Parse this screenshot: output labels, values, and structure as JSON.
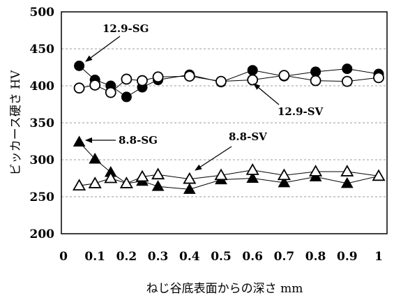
{
  "chart_data": {
    "type": "scatter",
    "title": "",
    "xlabel": "ねじ谷底表面からの深さ  mm",
    "ylabel": "ビッカース硬さ  HV",
    "xlim": [
      0,
      1
    ],
    "ylim": [
      200,
      500
    ],
    "xticks": [
      "0",
      "0.1",
      "0.2",
      "0.3",
      "0.4",
      "0.5",
      "0.6",
      "0.7",
      "0.8",
      "0.9",
      "1"
    ],
    "yticks": [
      "200",
      "250",
      "300",
      "350",
      "400",
      "450",
      "500"
    ],
    "grid": "horizontal dashed",
    "series": [
      {
        "name": "12.9-SG",
        "marker": "filled-circle",
        "x": [
          0.05,
          0.1,
          0.15,
          0.2,
          0.25,
          0.3,
          0.4,
          0.5,
          0.6,
          0.7,
          0.8,
          0.9,
          1.0
        ],
        "y": [
          427,
          408,
          400,
          385,
          398,
          408,
          415,
          405,
          421,
          413,
          419,
          423,
          416
        ]
      },
      {
        "name": "12.9-SV",
        "marker": "open-circle",
        "x": [
          0.05,
          0.1,
          0.15,
          0.2,
          0.25,
          0.3,
          0.4,
          0.5,
          0.6,
          0.7,
          0.8,
          0.9,
          1.0
        ],
        "y": [
          397,
          401,
          391,
          409,
          407,
          412,
          413,
          406,
          408,
          414,
          407,
          406,
          411
        ]
      },
      {
        "name": "8.8-SG",
        "marker": "filled-triangle",
        "x": [
          0.05,
          0.1,
          0.15,
          0.2,
          0.25,
          0.3,
          0.4,
          0.5,
          0.6,
          0.7,
          0.8,
          0.9,
          1.0
        ],
        "y": [
          324,
          301,
          283,
          268,
          271,
          264,
          260,
          273,
          275,
          269,
          277,
          268,
          278
        ]
      },
      {
        "name": "8.8-SV",
        "marker": "open-triangle",
        "x": [
          0.05,
          0.1,
          0.15,
          0.2,
          0.25,
          0.3,
          0.4,
          0.5,
          0.6,
          0.7,
          0.8,
          0.9,
          1.0
        ],
        "y": [
          265,
          268,
          275,
          268,
          277,
          280,
          274,
          279,
          286,
          279,
          284,
          284,
          278
        ]
      }
    ],
    "annotations": [
      {
        "text": "12.9-SG",
        "target_series": "12.9-SG"
      },
      {
        "text": "12.9-SV",
        "target_series": "12.9-SV"
      },
      {
        "text": "8.8-SG",
        "target_series": "8.8-SG"
      },
      {
        "text": "8.8-SV",
        "target_series": "8.8-SV"
      }
    ]
  }
}
